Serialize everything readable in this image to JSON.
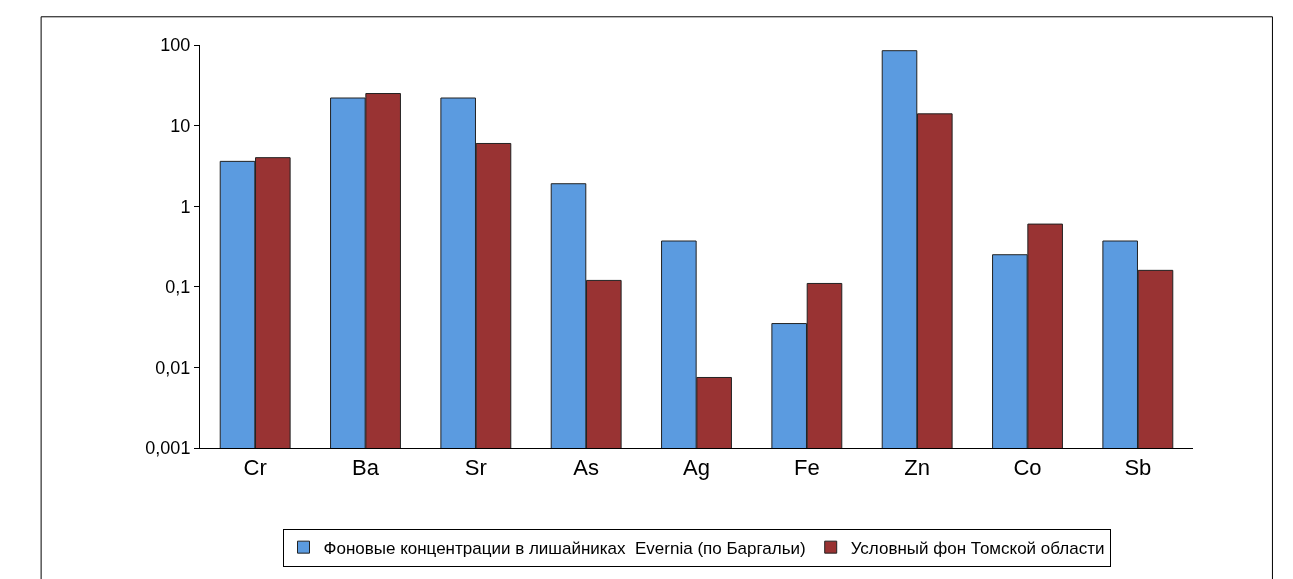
{
  "chart_data": {
    "type": "bar",
    "categories": [
      "Cr",
      "Ba",
      "Sr",
      "As",
      "Ag",
      "Fe",
      "Zn",
      "Co",
      "Sb"
    ],
    "series": [
      {
        "name": "Фоновые концентрации в лишайниках  Evernia (по Баргальи)",
        "color": "#5b9be0",
        "values": [
          3.6,
          22,
          22,
          1.9,
          0.37,
          0.035,
          85,
          0.25,
          0.37
        ]
      },
      {
        "name": "Условный фон Томской области",
        "color": "#993333",
        "values": [
          4,
          25,
          6,
          0.12,
          0.0075,
          0.11,
          14,
          0.6,
          0.16
        ]
      }
    ],
    "log": true,
    "ylim": [
      0.001,
      100
    ],
    "yticks": [
      {
        "value": 0.001,
        "label": "0,001"
      },
      {
        "value": 0.01,
        "label": "0,01"
      },
      {
        "value": 0.1,
        "label": "0,1"
      },
      1,
      10,
      100
    ],
    "grid": false,
    "legend": "bottom"
  }
}
